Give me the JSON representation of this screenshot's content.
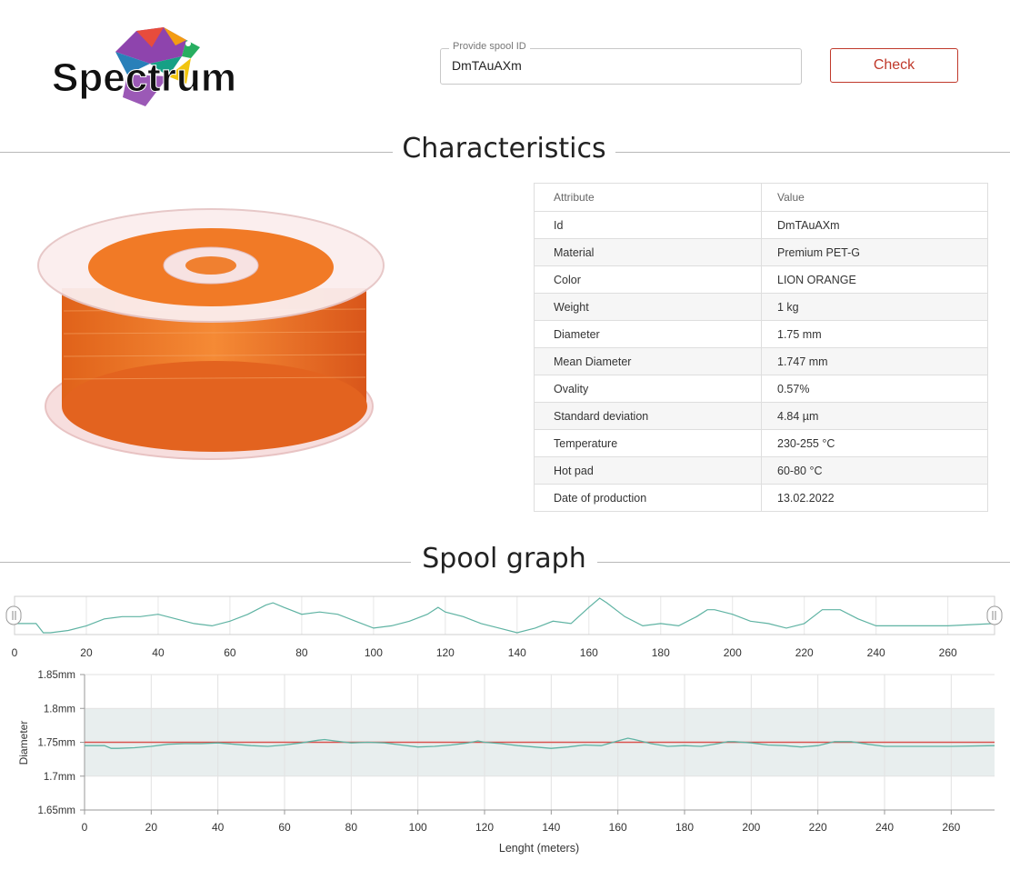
{
  "brand": {
    "logo_text": "Spectrum"
  },
  "search": {
    "legend": "Provide spool ID",
    "value": "DmTAuAXm"
  },
  "check_button": {
    "label": "Check"
  },
  "sections": {
    "characteristics": "Characteristics",
    "graph": "Spool graph"
  },
  "table": {
    "headers": [
      "Attribute",
      "Value"
    ],
    "rows": [
      [
        "Id",
        "DmTAuAXm"
      ],
      [
        "Material",
        "Premium PET-G"
      ],
      [
        "Color",
        "LION ORANGE"
      ],
      [
        "Weight",
        "1 kg"
      ],
      [
        "Diameter",
        "1.75 mm"
      ],
      [
        "Mean Diameter",
        "1.747 mm"
      ],
      [
        "Ovality",
        "0.57%"
      ],
      [
        "Standard deviation",
        "4.84 µm"
      ],
      [
        "Temperature",
        "230-255 °C"
      ],
      [
        "Hot pad",
        "60-80 °C"
      ],
      [
        "Date of production",
        "13.02.2022"
      ]
    ]
  },
  "colors": {
    "accent": "#c0392b",
    "line": "#5fb3a3",
    "nominal": "#d9534f",
    "band": "#e8eeee",
    "spool": "#f07a22"
  },
  "chart_data": {
    "type": "line",
    "xlabel": "Lenght (meters)",
    "ylabel": "Diameter",
    "xlim": [
      0,
      273
    ],
    "ylim": [
      1.65,
      1.85
    ],
    "x_ticks": [
      0,
      20,
      40,
      60,
      80,
      100,
      120,
      140,
      160,
      180,
      200,
      220,
      240,
      260
    ],
    "y_ticks": [
      "1.65mm",
      "1.7mm",
      "1.75mm",
      "1.8mm",
      "1.85mm"
    ],
    "y_tick_values": [
      1.65,
      1.7,
      1.75,
      1.8,
      1.85
    ],
    "tolerance_band": [
      1.7,
      1.8
    ],
    "nominal": 1.75,
    "navigator_x_ticks": [
      0,
      20,
      40,
      60,
      80,
      100,
      120,
      140,
      160,
      180,
      200,
      220,
      240,
      260
    ],
    "series": [
      {
        "x": [
          0,
          6,
          8,
          10,
          15,
          20,
          25,
          30,
          35,
          40,
          45,
          50,
          55,
          60,
          65,
          70,
          72,
          75,
          80,
          85,
          90,
          95,
          100,
          105,
          110,
          115,
          118,
          120,
          125,
          130,
          135,
          140,
          145,
          150,
          155,
          160,
          163,
          165,
          170,
          175,
          180,
          185,
          190,
          193,
          195,
          200,
          205,
          210,
          215,
          220,
          225,
          230,
          235,
          240,
          250,
          260,
          273
        ],
        "y": [
          1.745,
          1.745,
          1.741,
          1.741,
          1.742,
          1.744,
          1.747,
          1.748,
          1.748,
          1.749,
          1.747,
          1.745,
          1.744,
          1.746,
          1.749,
          1.753,
          1.754,
          1.752,
          1.749,
          1.75,
          1.749,
          1.746,
          1.743,
          1.744,
          1.746,
          1.749,
          1.752,
          1.75,
          1.748,
          1.745,
          1.743,
          1.741,
          1.743,
          1.746,
          1.745,
          1.752,
          1.756,
          1.754,
          1.748,
          1.744,
          1.745,
          1.744,
          1.748,
          1.751,
          1.751,
          1.749,
          1.746,
          1.745,
          1.743,
          1.745,
          1.751,
          1.751,
          1.747,
          1.744,
          1.744,
          1.744,
          1.745
        ]
      }
    ]
  }
}
